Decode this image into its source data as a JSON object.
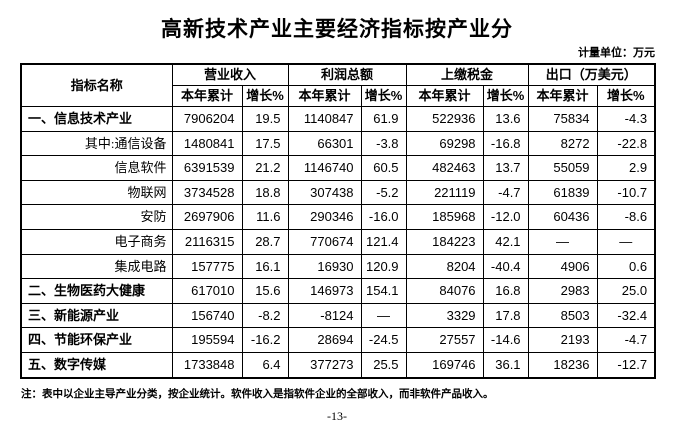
{
  "title": "高新技术产业主要经济指标按产业分",
  "unit_label": "计量单位：万元",
  "table": {
    "name_header": "指标名称",
    "groups": [
      {
        "label": "营业收入"
      },
      {
        "label": "利润总额"
      },
      {
        "label": "上缴税金"
      },
      {
        "label": "出口（万美元）"
      }
    ],
    "sub_headers": [
      "本年累计",
      "增长%"
    ],
    "rows": [
      {
        "label": "一、信息技术产业",
        "type": "category",
        "values": [
          "7906204",
          "19.5",
          "1140847",
          "61.9",
          "522936",
          "13.6",
          "75834",
          "-4.3"
        ]
      },
      {
        "label": "其中:通信设备",
        "type": "sub",
        "values": [
          "1480841",
          "17.5",
          "66301",
          "-3.8",
          "69298",
          "-16.8",
          "8272",
          "-22.8"
        ]
      },
      {
        "label": "信息软件",
        "type": "sub",
        "values": [
          "6391539",
          "21.2",
          "1146740",
          "60.5",
          "482463",
          "13.7",
          "55059",
          "2.9"
        ]
      },
      {
        "label": "物联网",
        "type": "sub",
        "values": [
          "3734528",
          "18.8",
          "307438",
          "-5.2",
          "221119",
          "-4.7",
          "61839",
          "-10.7"
        ]
      },
      {
        "label": "安防",
        "type": "sub",
        "values": [
          "2697906",
          "11.6",
          "290346",
          "-16.0",
          "185968",
          "-12.0",
          "60436",
          "-8.6"
        ]
      },
      {
        "label": "电子商务",
        "type": "sub",
        "values": [
          "2116315",
          "28.7",
          "770674",
          "121.4",
          "184223",
          "42.1",
          "—",
          "—"
        ]
      },
      {
        "label": "集成电路",
        "type": "sub",
        "values": [
          "157775",
          "16.1",
          "16930",
          "120.9",
          "8204",
          "-40.4",
          "4906",
          "0.6"
        ]
      },
      {
        "label": "二、生物医药大健康",
        "type": "category",
        "values": [
          "617010",
          "15.6",
          "146973",
          "154.1",
          "84076",
          "16.8",
          "2983",
          "25.0"
        ]
      },
      {
        "label": "三、新能源产业",
        "type": "category",
        "values": [
          "156740",
          "-8.2",
          "-8124",
          "—",
          "3329",
          "17.8",
          "8503",
          "-32.4"
        ]
      },
      {
        "label": "四、节能环保产业",
        "type": "category",
        "values": [
          "195594",
          "-16.2",
          "28694",
          "-24.5",
          "27557",
          "-14.6",
          "2193",
          "-4.7"
        ]
      },
      {
        "label": "五、数字传媒",
        "type": "category",
        "values": [
          "1733848",
          "6.4",
          "377273",
          "25.5",
          "169746",
          "36.1",
          "18236",
          "-12.7"
        ]
      }
    ]
  },
  "note": "注：表中以企业主导产业分类，按企业统计。软件收入是指软件企业的全部收入，而非软件产品收入。",
  "page_number": "-13-"
}
